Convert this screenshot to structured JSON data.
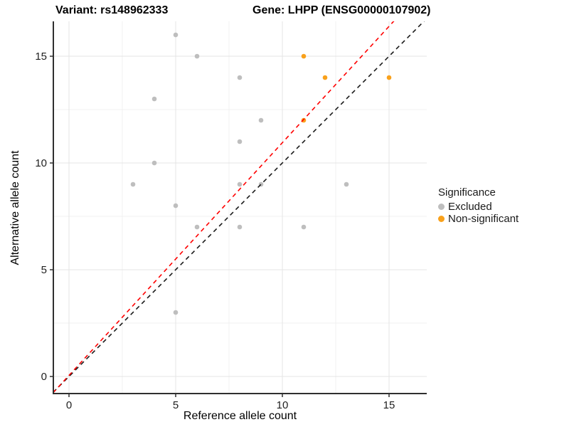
{
  "figure": {
    "title_left": "Variant: rs148962333",
    "title_right": "Gene: LHPP (ENSG00000107902)"
  },
  "chart_data": {
    "type": "scatter",
    "xlabel": "Reference allele count",
    "ylabel": "Alternative allele count",
    "xlim": [
      -0.8,
      16.8
    ],
    "ylim": [
      -0.8,
      16.8
    ],
    "x_ticks": [
      0,
      5,
      10,
      15
    ],
    "y_ticks": [
      0,
      5,
      10,
      15
    ],
    "x_minor_gridlines": [
      2.5,
      7.5,
      12.5
    ],
    "y_minor_gridlines": [
      2.5,
      7.5,
      12.5
    ],
    "grid": true,
    "background": "#ffffff",
    "major_grid_color": "#e4e4e4",
    "minor_grid_color": "#f1f1f1",
    "axis_color": "#2f2f2f",
    "series": [
      {
        "name": "Excluded",
        "color": "#bebebe",
        "points": [
          [
            5,
            16
          ],
          [
            6,
            15
          ],
          [
            8,
            14
          ],
          [
            4,
            13
          ],
          [
            9,
            12
          ],
          [
            8,
            11
          ],
          [
            4,
            10
          ],
          [
            3,
            9
          ],
          [
            8,
            9
          ],
          [
            9,
            9
          ],
          [
            13,
            9
          ],
          [
            5,
            8
          ],
          [
            6,
            7
          ],
          [
            8,
            7
          ],
          [
            11,
            7
          ],
          [
            5,
            3
          ]
        ]
      },
      {
        "name": "Non-significant",
        "color": "#f9a11b",
        "points": [
          [
            11,
            15
          ],
          [
            12,
            14
          ],
          [
            15,
            14
          ],
          [
            11,
            12
          ]
        ]
      }
    ],
    "ref_lines": [
      {
        "name": "identity-line",
        "slope": 1,
        "intercept": 0,
        "color": "#1a1a1a",
        "style": "dashed"
      },
      {
        "name": "expected-line",
        "slope": 1.09,
        "intercept": 0.05,
        "color": "#ff0000",
        "style": "dashed"
      }
    ],
    "legend": {
      "title": "Significance",
      "position": "right",
      "entries": [
        {
          "label": "Excluded",
          "color": "#bebebe"
        },
        {
          "label": "Non-significant",
          "color": "#f9a11b"
        }
      ]
    }
  }
}
